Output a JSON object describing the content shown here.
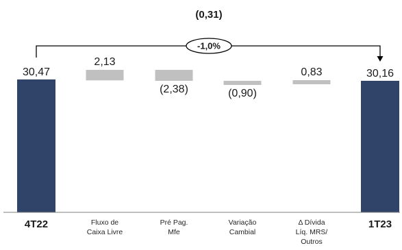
{
  "chart_data": {
    "type": "bar",
    "subtype": "waterfall",
    "categories": [
      "4T22",
      "Fluxo de Caixa Livre",
      "Pré Pag. Mfe",
      "Variação Cambial",
      "Δ Dívida Líq. MRS/ Outros",
      "1T23"
    ],
    "category_lines": [
      [
        "4T22"
      ],
      [
        "Fluxo de",
        "Caixa Livre"
      ],
      [
        "Pré Pag.",
        "Mfe"
      ],
      [
        "Variação",
        "Cambial"
      ],
      [
        "Δ Dívida",
        "Líq. MRS/",
        "Outros"
      ],
      [
        "1T23"
      ]
    ],
    "values": [
      30.47,
      2.13,
      -2.38,
      -0.9,
      0.83,
      30.16
    ],
    "value_labels": [
      "30,47",
      "2,13",
      "(2,38)",
      "(0,90)",
      "0,83",
      "30,16"
    ],
    "is_total": [
      true,
      false,
      false,
      false,
      false,
      true
    ],
    "change_label": "(0,31)",
    "change_pct": "-1,0%",
    "colors": {
      "total": "#2f4468",
      "delta": "#c0c0c0",
      "axis": "#7f7f7f",
      "connector": "#000000"
    }
  }
}
